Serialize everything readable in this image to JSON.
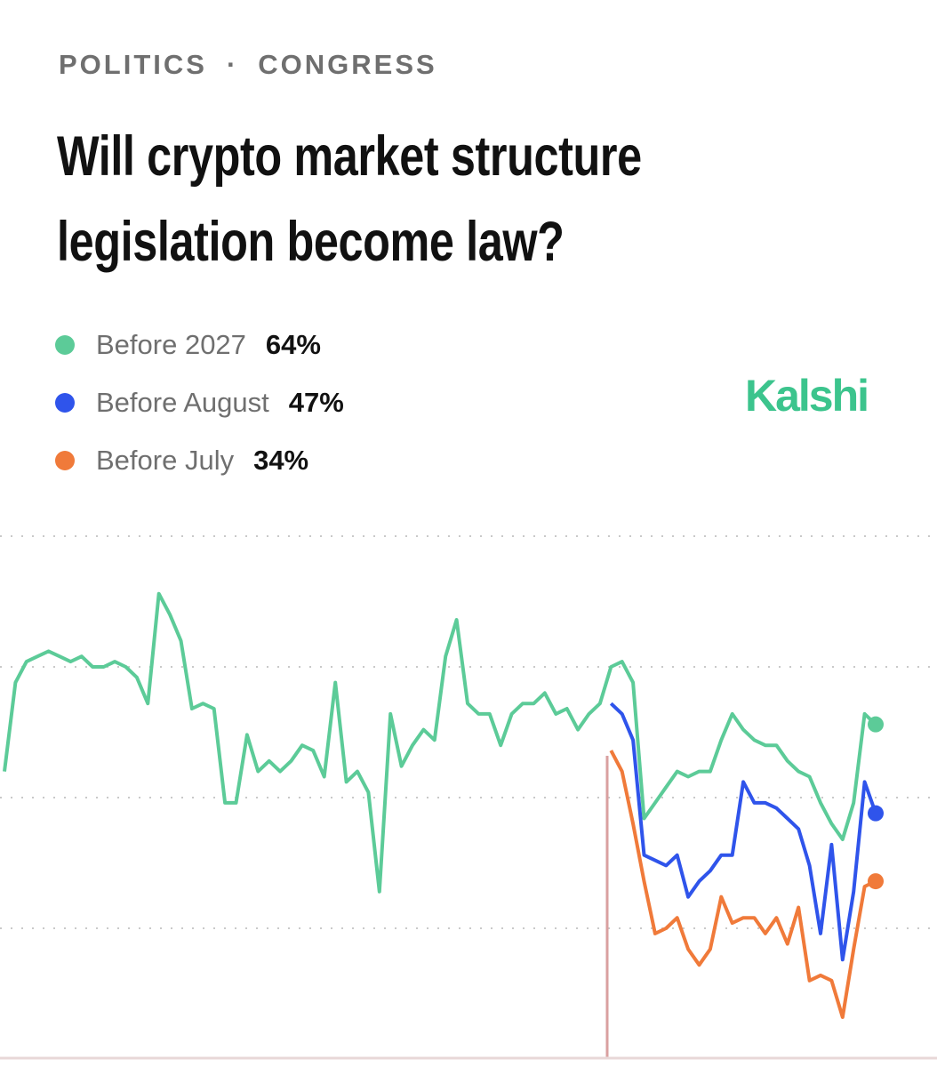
{
  "header": {
    "section": "POLITICS",
    "subsection": "CONGRESS"
  },
  "brand": "Kalshi",
  "chart_data": {
    "type": "line",
    "title": "Will crypto market structure legislation become law?",
    "ylim": [
      0,
      100
    ],
    "yticks": [
      25,
      50,
      75,
      100
    ],
    "grid": true,
    "series": [
      {
        "name": "Before 2027",
        "color": "#5ccb98",
        "current_label": "64%",
        "values": [
          55,
          72,
          76,
          77,
          78,
          77,
          76,
          77,
          75,
          75,
          76,
          75,
          73,
          68,
          89,
          85,
          80,
          67,
          68,
          67,
          49,
          49,
          62,
          55,
          57,
          55,
          57,
          60,
          59,
          54,
          72,
          53,
          55,
          51,
          32,
          66,
          56,
          60,
          63,
          61,
          77,
          84,
          68,
          66,
          66,
          60,
          66,
          68,
          68,
          70,
          66,
          67,
          63,
          66,
          68,
          75,
          76,
          72,
          46,
          49,
          52,
          55,
          54,
          55,
          55,
          61,
          66,
          63,
          61,
          60,
          60,
          57,
          55,
          54,
          49,
          45,
          42,
          49,
          66,
          64
        ]
      },
      {
        "name": "Before August",
        "color": "#2f54eb",
        "current_label": "47%",
        "values": [
          null,
          null,
          null,
          null,
          null,
          null,
          null,
          null,
          null,
          null,
          null,
          null,
          null,
          null,
          null,
          null,
          null,
          null,
          null,
          null,
          null,
          null,
          null,
          null,
          null,
          null,
          null,
          null,
          null,
          null,
          null,
          null,
          null,
          null,
          null,
          null,
          null,
          null,
          null,
          null,
          null,
          null,
          null,
          null,
          null,
          null,
          null,
          null,
          null,
          null,
          null,
          null,
          null,
          null,
          null,
          68,
          66,
          61,
          39,
          38,
          37,
          39,
          31,
          34,
          36,
          39,
          39,
          53,
          49,
          49,
          48,
          46,
          44,
          37,
          24,
          41,
          19,
          32,
          53,
          47
        ]
      },
      {
        "name": "Before July",
        "color": "#f07a3a",
        "current_label": "34%",
        "values": [
          null,
          null,
          null,
          null,
          null,
          null,
          null,
          null,
          null,
          null,
          null,
          null,
          null,
          null,
          null,
          null,
          null,
          null,
          null,
          null,
          null,
          null,
          null,
          null,
          null,
          null,
          null,
          null,
          null,
          null,
          null,
          null,
          null,
          null,
          null,
          null,
          null,
          null,
          null,
          null,
          null,
          null,
          null,
          null,
          null,
          null,
          null,
          null,
          null,
          null,
          null,
          null,
          null,
          null,
          null,
          59,
          55,
          45,
          34,
          24,
          25,
          27,
          21,
          18,
          21,
          31,
          26,
          27,
          27,
          24,
          27,
          22,
          29,
          15,
          16,
          15,
          8,
          21,
          33,
          34
        ]
      }
    ]
  }
}
